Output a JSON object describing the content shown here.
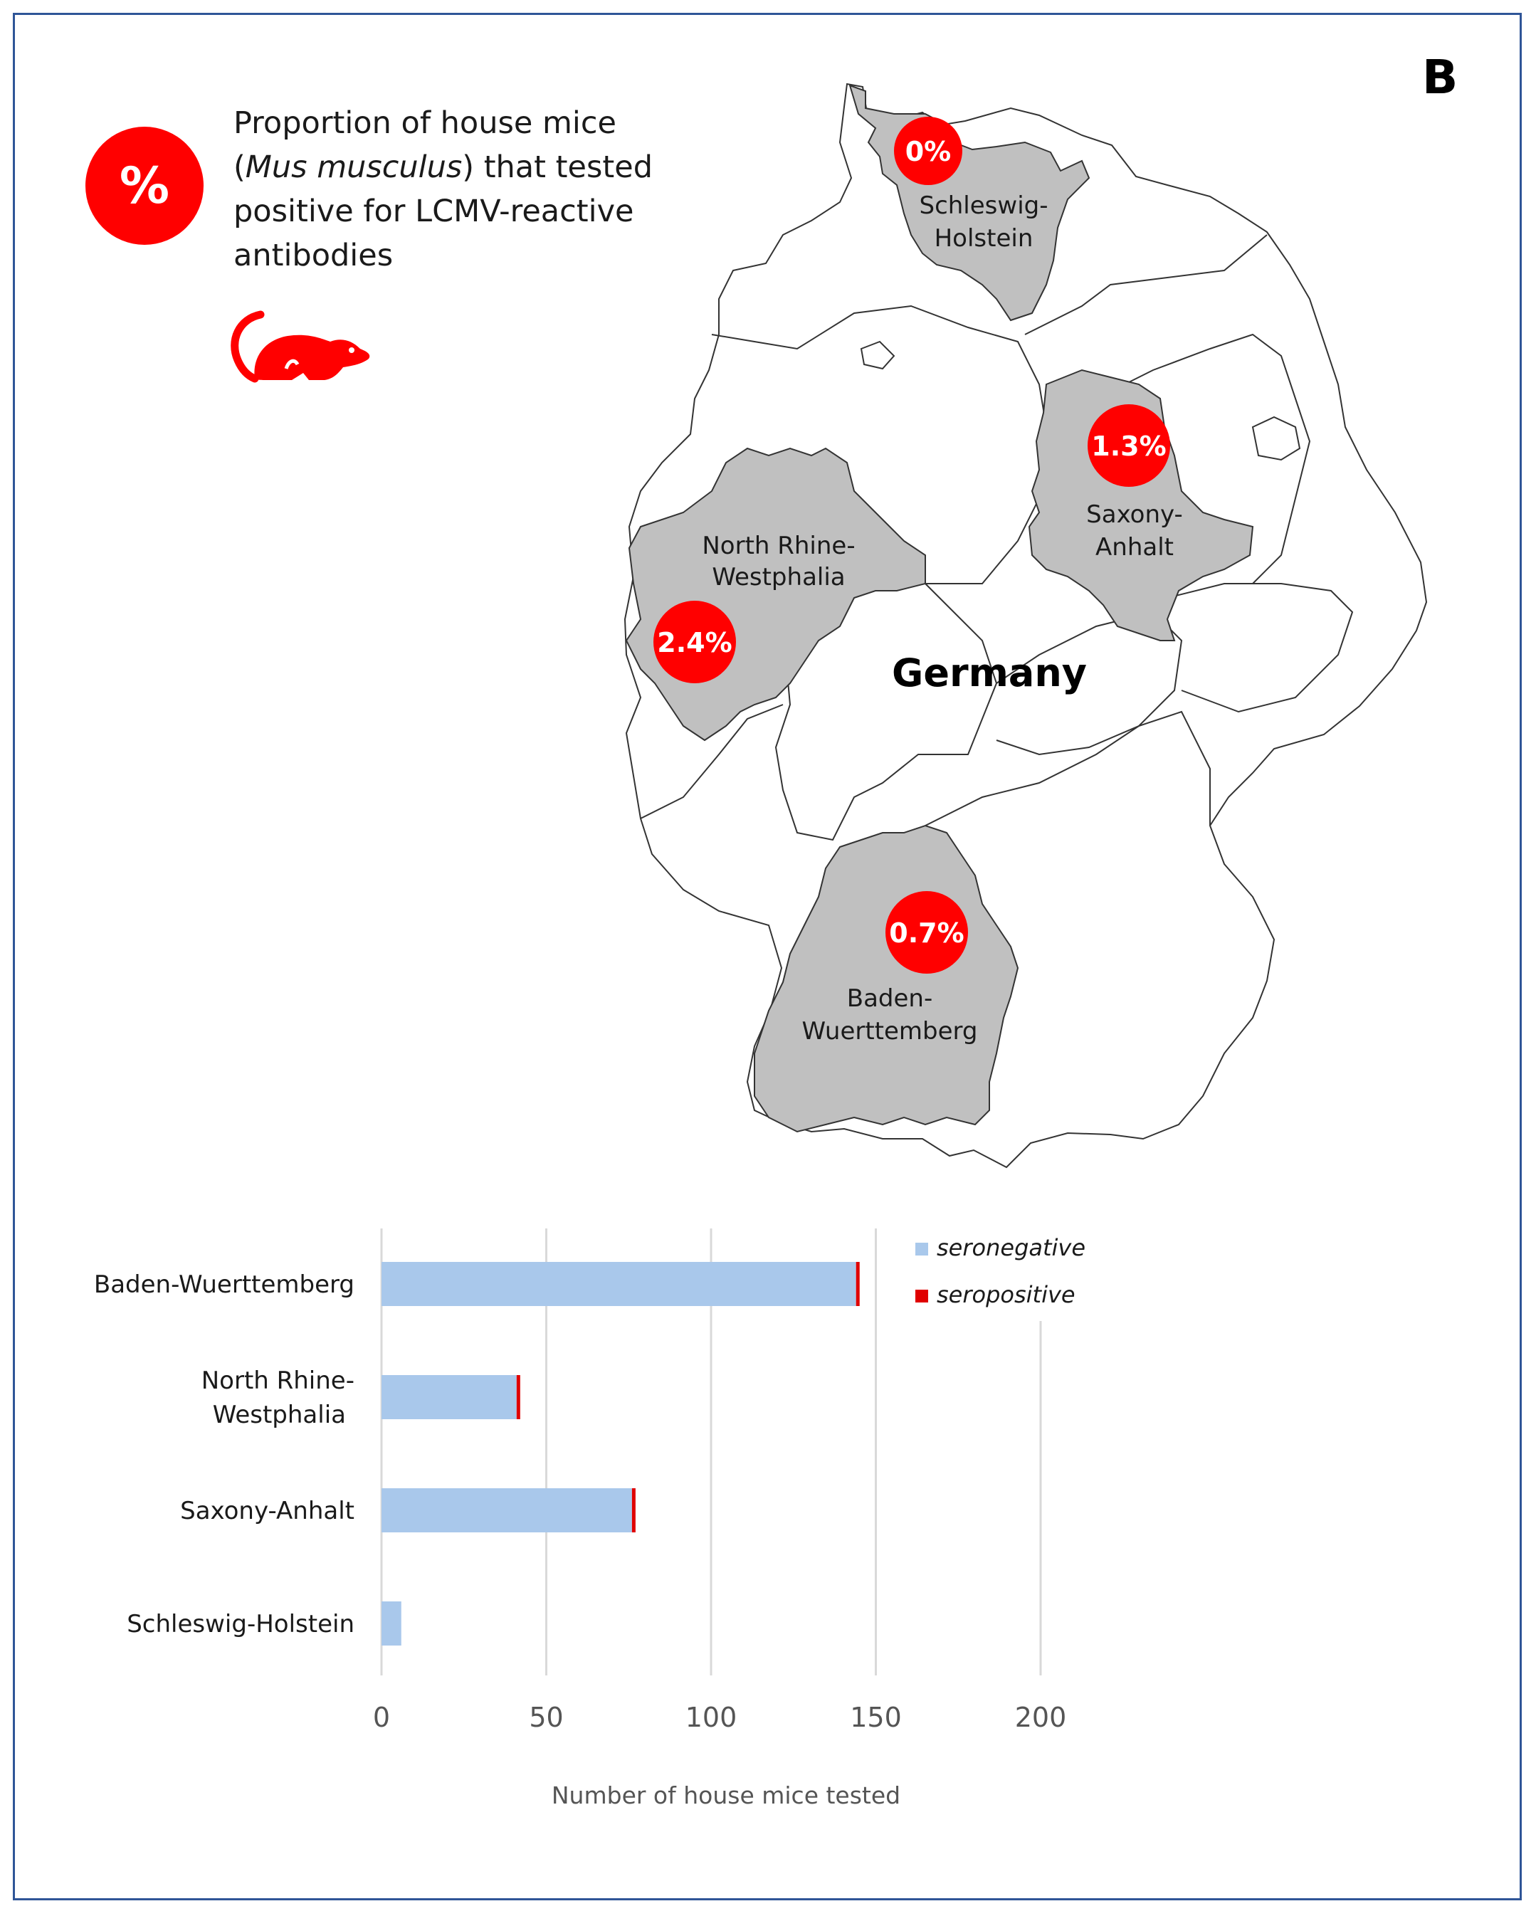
{
  "panel_letter": "B",
  "legend": {
    "circle_symbol": "%",
    "line1": "Proportion of house mice",
    "line2_open": "(",
    "line2_species": "Mus musculus",
    "line2_rest": ") that tested",
    "line3": "positive for LCMV-reactive",
    "line4": "antibodies",
    "icon": "mouse-icon",
    "color": "#ff0000"
  },
  "map": {
    "country": "Germany",
    "highlight_color": "#c0c0c0",
    "marker_color": "#ff0000",
    "regions": [
      {
        "name_line1": "Schleswig-",
        "name_line2": "Holstein",
        "percent": "0%"
      },
      {
        "name_line1": "Saxony-",
        "name_line2": "Anhalt",
        "percent": "1.3%"
      },
      {
        "name_line1": "North Rhine-",
        "name_line2": "Westphalia",
        "percent": "2.4%"
      },
      {
        "name_line1": "Baden-",
        "name_line2": "Wuerttemberg",
        "percent": "0.7%"
      }
    ]
  },
  "chart_data": {
    "type": "bar",
    "orientation": "horizontal",
    "stacked": true,
    "categories": [
      "Baden-Wuerttemberg",
      "North Rhine-Westphalia",
      "Saxony-Anhalt",
      "Schleswig-Holstein"
    ],
    "category_label_lines": [
      [
        "Baden-Wuerttemberg"
      ],
      [
        "North Rhine-",
        "Westphalia"
      ],
      [
        "Saxony-Anhalt"
      ],
      [
        "Schleswig-Holstein"
      ]
    ],
    "series": [
      {
        "name": "seronegative",
        "color": "#a9c8eb",
        "values": [
          144,
          41,
          76,
          6
        ]
      },
      {
        "name": "seropositive",
        "color": "#e00000",
        "values": [
          1,
          1,
          1,
          0
        ]
      }
    ],
    "xlabel": "Number of house mice tested",
    "xlim": [
      0,
      200
    ],
    "xticks": [
      0,
      50,
      100,
      150,
      200
    ],
    "grid": true,
    "legend_position": "top-right"
  }
}
